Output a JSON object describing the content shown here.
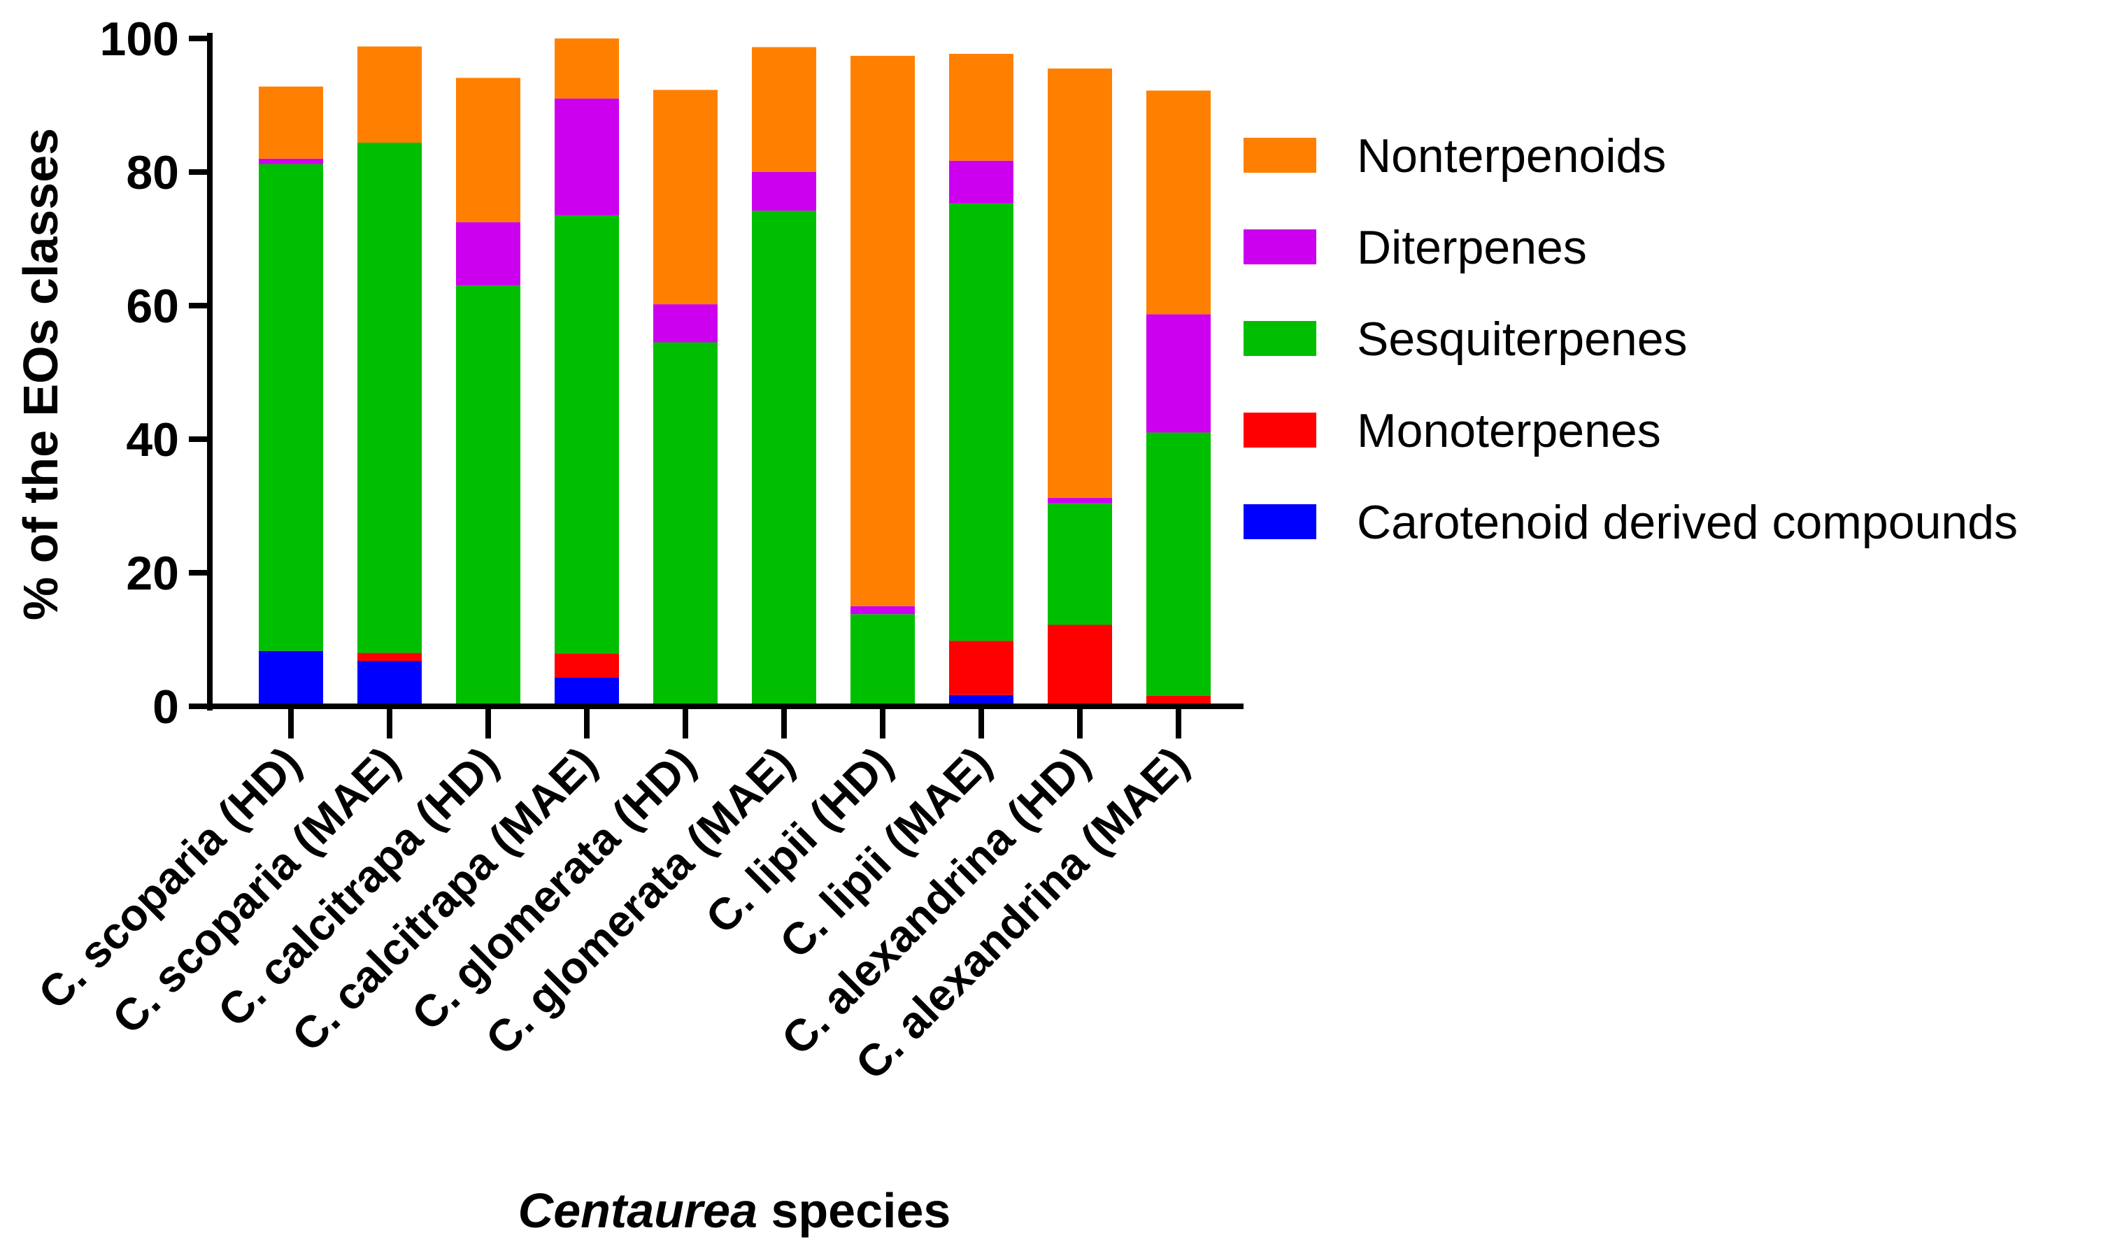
{
  "chart_data": {
    "type": "bar",
    "stacked": true,
    "ylabel": "% of the EOs classes",
    "xlabel_italic": "Centaurea",
    "xlabel_rest": " species",
    "ylim": [
      0,
      100
    ],
    "yticks": [
      "0",
      "20",
      "40",
      "60",
      "80",
      "100"
    ],
    "categories": [
      "C. scoparia (HD)",
      "C. scoparia (MAE)",
      "C. calcitrapa (HD)",
      "C. calcitrapa (MAE)",
      "C. glomerata (HD)",
      "C. glomerata (MAE)",
      "C. lipii (HD)",
      "C. lipii (MAE)",
      "C. alexandrina (HD)",
      "C. alexandrina (MAE)"
    ],
    "series": [
      {
        "name": "Carotenoid derived compounds",
        "color": "#0000ff",
        "values": [
          8.3,
          6.8,
          0,
          4.3,
          0,
          0,
          0,
          1.7,
          0,
          0
        ]
      },
      {
        "name": "Monoterpenes",
        "color": "#ff0000",
        "values": [
          0,
          1.2,
          0,
          3.6,
          0,
          0,
          0,
          8.1,
          12.2,
          1.6
        ]
      },
      {
        "name": "Sesquiterpenes",
        "color": "#00bf00",
        "values": [
          72.9,
          76.4,
          63.0,
          65.6,
          54.5,
          74.2,
          13.8,
          65.5,
          18.2,
          39.4
        ]
      },
      {
        "name": "Diterpenes",
        "color": "#cc00ee",
        "values": [
          0.8,
          0,
          9.5,
          17.5,
          5.7,
          5.8,
          1.2,
          6.4,
          0.8,
          17.7
        ]
      },
      {
        "name": "Nonterpenoids",
        "color": "#ff8000",
        "values": [
          10.8,
          14.4,
          21.6,
          9.0,
          32.1,
          18.7,
          82.4,
          16.0,
          64.3,
          33.5
        ]
      }
    ],
    "legend_position": "right",
    "grid": false
  }
}
